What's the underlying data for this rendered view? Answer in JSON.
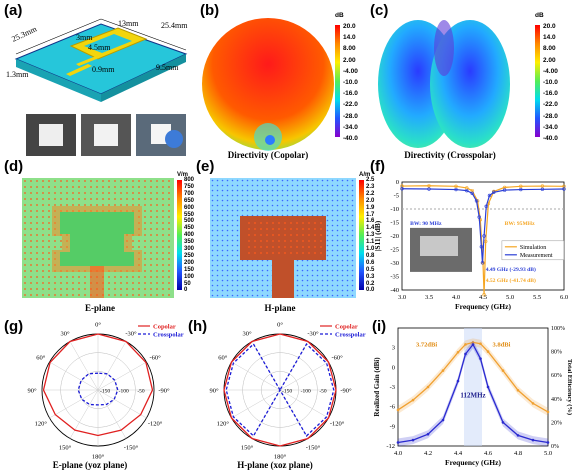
{
  "panels": {
    "a": {
      "label": "(a)",
      "dims": {
        "d1": "25.4mm",
        "d2": "25.3mm",
        "d3": "13mm",
        "d4": "3mm",
        "d5": "4.5mm",
        "d6": "0.9mm",
        "d7": "9.5mm",
        "d8": "1.3mm"
      }
    },
    "b": {
      "label": "(b)",
      "caption": "Directivity (Copolar)",
      "unit": "dB",
      "ticks": [
        "20.0",
        "14.0",
        "8.00",
        "2.00",
        "-4.00",
        "-10.0",
        "-16.0",
        "-22.0",
        "-28.0",
        "-34.0",
        "-40.0"
      ]
    },
    "c": {
      "label": "(c)",
      "caption": "Directivity (Crosspolar)",
      "unit": "dB",
      "ticks": [
        "20.0",
        "14.0",
        "8.00",
        "2.00",
        "-4.00",
        "-10.0",
        "-16.0",
        "-22.0",
        "-28.0",
        "-34.0",
        "-40.0"
      ]
    },
    "d": {
      "label": "(d)",
      "caption": "E-plane",
      "unit": "V/m",
      "ticks": [
        "800",
        "750",
        "700",
        "650",
        "600",
        "550",
        "500",
        "450",
        "400",
        "350",
        "300",
        "250",
        "200",
        "150",
        "100",
        "50",
        "0"
      ]
    },
    "e": {
      "label": "(e)",
      "caption": "H-plane",
      "unit": "A/m",
      "ticks": [
        "2.5",
        "2.3",
        "2.2",
        "2.0",
        "1.9",
        "1.7",
        "1.6",
        "1.4",
        "1.3",
        "1.1",
        "1.0",
        "0.8",
        "0.6",
        "0.5",
        "0.3",
        "0.2",
        "0.0"
      ]
    },
    "f": {
      "label": "(f)"
    },
    "g": {
      "label": "(g)",
      "caption": "E-plane (yoz plane)"
    },
    "h": {
      "label": "(h)",
      "caption": "H-plane (xoz plane)"
    },
    "i": {
      "label": "(i)"
    }
  },
  "chart_data": [
    {
      "type": "line",
      "panel": "f",
      "xlabel": "Frequency (GHz)",
      "ylabel": "|S11| (dB)",
      "xlim": [
        3.0,
        6.0
      ],
      "ylim": [
        -40,
        0
      ],
      "xticks": [
        "3.0",
        "3.5",
        "4.0",
        "4.5",
        "5.0",
        "5.5",
        "6.0"
      ],
      "yticks": [
        "0",
        "-5",
        "-10",
        "-15",
        "-20",
        "-25",
        "-30",
        "-35",
        "-40"
      ],
      "series": [
        {
          "name": "Simulation",
          "color": "#f5a623",
          "x": [
            3.0,
            3.5,
            4.0,
            4.2,
            4.3,
            4.4,
            4.45,
            4.5,
            4.52,
            4.55,
            4.6,
            4.7,
            4.9,
            5.2,
            5.6,
            6.0
          ],
          "y": [
            -1.5,
            -1.4,
            -1.6,
            -2.2,
            -3.2,
            -7,
            -14,
            -30,
            -41.74,
            -22,
            -8,
            -3.5,
            -2,
            -1.6,
            -1.5,
            -1.6
          ]
        },
        {
          "name": "Measurement",
          "color": "#2c3fd6",
          "x": [
            3.0,
            3.5,
            4.0,
            4.2,
            4.3,
            4.38,
            4.43,
            4.47,
            4.49,
            4.52,
            4.56,
            4.62,
            4.7,
            4.9,
            5.2,
            5.6,
            6.0
          ],
          "y": [
            -2.5,
            -2.6,
            -2.8,
            -3.2,
            -4.2,
            -7,
            -13,
            -24,
            -29.93,
            -20,
            -9,
            -5,
            -3.8,
            -3,
            -2.8,
            -2.7,
            -2.6
          ]
        }
      ],
      "annotations": [
        "BW: 90 MHz",
        "BW: 95MHz",
        "4.49 GHz (-29.93 dB)",
        "4.52 GHz (-41.74 dB)"
      ]
    },
    {
      "type": "line",
      "panel": "g",
      "polar": true,
      "angle_ticks": [
        "0°",
        "-30°",
        "-60°",
        "-90°",
        "-120°",
        "-150°",
        "180°",
        "150°",
        "120°",
        "90°",
        "60°",
        "30°"
      ],
      "radial_ticks": [
        "-150",
        "-100",
        "-50",
        "0"
      ],
      "series": [
        {
          "name": "Copolar",
          "color": "#e02020",
          "style": "solid",
          "theta": [
            0,
            30,
            60,
            90,
            120,
            150,
            180,
            210,
            240,
            270,
            300,
            330
          ],
          "r": [
            0,
            0,
            -2,
            -4,
            -18,
            -26,
            -28,
            -26,
            -18,
            -4,
            -2,
            0
          ]
        },
        {
          "name": "Crosspolar",
          "color": "#1a1ad6",
          "style": "dashed",
          "theta": [
            0,
            30,
            60,
            90,
            120,
            150,
            180,
            210,
            240,
            270,
            300,
            330
          ],
          "r": [
            -105,
            -100,
            -98,
            -97,
            -100,
            -105,
            -110,
            -105,
            -100,
            -97,
            -98,
            -100
          ]
        }
      ]
    },
    {
      "type": "line",
      "panel": "h",
      "polar": true,
      "angle_ticks": [
        "0°",
        "-30°",
        "-60°",
        "-90°",
        "-120°",
        "-150°",
        "180°",
        "150°",
        "120°",
        "90°",
        "60°",
        "30°"
      ],
      "radial_ticks": [
        "-150",
        "-100",
        "-50",
        "0"
      ],
      "series": [
        {
          "name": "Copolar",
          "color": "#e02020",
          "style": "solid",
          "theta": [
            0,
            30,
            60,
            90,
            120,
            150,
            180,
            210,
            240,
            270,
            300,
            330
          ],
          "r": [
            0,
            0,
            0,
            0,
            0,
            0,
            0,
            0,
            0,
            0,
            0,
            0
          ]
        },
        {
          "name": "Crosspolar",
          "color": "#1a1ad6",
          "style": "dashed",
          "theta": [
            0,
            30,
            60,
            90,
            120,
            150,
            180,
            210,
            240,
            270,
            300,
            330
          ],
          "r": [
            -150,
            -8,
            -6,
            -6,
            -6,
            -8,
            -150,
            -8,
            -6,
            -6,
            -6,
            -8
          ]
        }
      ]
    },
    {
      "type": "line",
      "panel": "i",
      "xlabel": "Frequency (GHz)",
      "ylabel": "Realized Gain (dBi)",
      "y2label": "Total Efficiency (%)",
      "xlim": [
        4.0,
        5.0
      ],
      "ylim": [
        -12,
        6
      ],
      "y2lim": [
        0,
        100
      ],
      "xticks": [
        "4.0",
        "4.2",
        "4.4",
        "4.6",
        "4.8",
        "5.0"
      ],
      "yticks": [
        "3",
        "0",
        "-3",
        "-6",
        "-9",
        "-12"
      ],
      "y2ticks": [
        "100%",
        "80%",
        "60%",
        "40%",
        "20%",
        "0%"
      ],
      "series": [
        {
          "name": "Realized Gain",
          "color": "#f0a030",
          "axis": "left",
          "x": [
            4.0,
            4.1,
            4.2,
            4.3,
            4.4,
            4.45,
            4.5,
            4.55,
            4.6,
            4.7,
            4.8,
            4.9,
            5.0
          ],
          "y": [
            -6.5,
            -5,
            -3,
            -0.5,
            2.3,
            3.5,
            3.8,
            3.6,
            2.4,
            -0.5,
            -3.5,
            -5.5,
            -6.8
          ]
        },
        {
          "name": "Total Efficiency",
          "color": "#2a2ad0",
          "axis": "right",
          "x": [
            4.0,
            4.1,
            4.2,
            4.3,
            4.4,
            4.45,
            4.5,
            4.55,
            4.6,
            4.7,
            4.8,
            4.9,
            5.0
          ],
          "y": [
            3,
            5,
            10,
            22,
            55,
            78,
            86,
            74,
            50,
            20,
            9,
            5,
            3
          ]
        }
      ],
      "annotations": [
        "3.72dBi",
        "3.8dBi",
        "112MHz"
      ]
    }
  ],
  "legend_f": [
    "Simulation",
    "Measurement"
  ],
  "legend_gh": [
    "Copolar",
    "Crosspolar"
  ],
  "colors": {
    "copolar": "#e02020",
    "crosspolar": "#1a1ad6",
    "sim": "#f5a623",
    "meas": "#2c3fd6"
  }
}
